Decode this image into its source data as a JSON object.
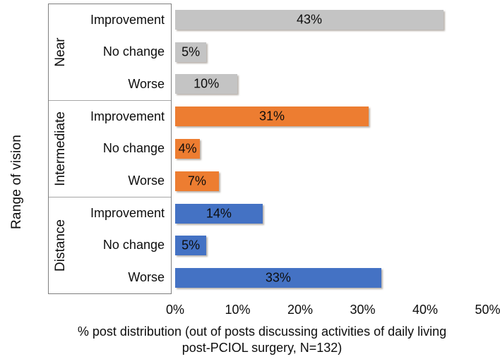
{
  "chart_data": {
    "type": "bar",
    "orientation": "horizontal",
    "ylabel": "Range of vision",
    "xlabel": "% post distribution (out of posts discussing activities of daily living post-PCIOL surgery, N=132)",
    "xlabel_lines": [
      "% post distribution (out of posts discussing activities of daily living",
      "post-PCIOL surgery, N=132)"
    ],
    "xlim": [
      0,
      50
    ],
    "x_tick_step": 10,
    "x_ticks": [
      "0%",
      "10%",
      "20%",
      "30%",
      "40%",
      "50%"
    ],
    "grid": false,
    "legend": "none",
    "categories_per_group": [
      "Improvement",
      "No change",
      "Worse"
    ],
    "groups": [
      {
        "name": "Near",
        "color": "#c4c4c4",
        "rows": [
          {
            "label": "Improvement",
            "value": 43,
            "value_label": "43%"
          },
          {
            "label": "No change",
            "value": 5,
            "value_label": "5%"
          },
          {
            "label": "Worse",
            "value": 10,
            "value_label": "10%"
          }
        ]
      },
      {
        "name": "Intermediate",
        "color": "#ed7d31",
        "rows": [
          {
            "label": "Improvement",
            "value": 31,
            "value_label": "31%"
          },
          {
            "label": "No change",
            "value": 4,
            "value_label": "4%"
          },
          {
            "label": "Worse",
            "value": 7,
            "value_label": "7%"
          }
        ]
      },
      {
        "name": "Distance",
        "color": "#4472c4",
        "rows": [
          {
            "label": "Improvement",
            "value": 14,
            "value_label": "14%"
          },
          {
            "label": "No change",
            "value": 5,
            "value_label": "5%"
          },
          {
            "label": "Worse",
            "value": 33,
            "value_label": "33%"
          }
        ]
      }
    ],
    "colors": {
      "near_bar": "#c4c4c4",
      "intermediate_bar": "#ed7d31",
      "distance_bar": "#4472c4",
      "box_border": "#7f7f7f",
      "group_divider": "#a6a6a6",
      "text": "#0d0d0d",
      "background": "#ffffff"
    }
  }
}
